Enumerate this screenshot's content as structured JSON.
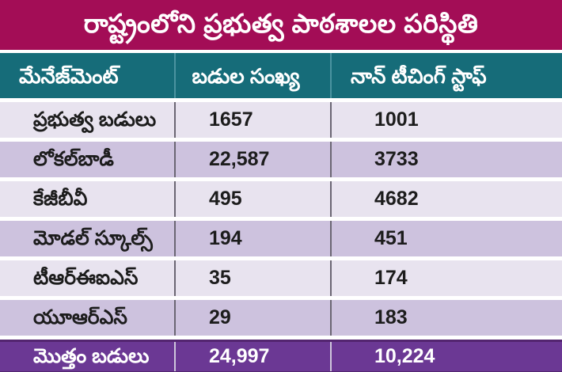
{
  "colors": {
    "title-bg": "#A30D56",
    "header-bg": "#166C79",
    "row-light": "#E8E3EF",
    "row-dark": "#CDC2DE",
    "footer-bg": "#6B3894",
    "footer-edge": "#53256F",
    "text-dark": "#1C1C1C",
    "text-light": "#FFFFFF"
  },
  "chart_data": {
    "type": "table",
    "title": "రాష్ట్రంలోని ప్రభుత్వ పాఠశాలల పరిస్థితి",
    "columns": [
      "మేనేజ్‌మెంట్",
      "బడుల సంఖ్య",
      "నాన్ టీచింగ్ స్టాఫ్"
    ],
    "rows": [
      {
        "label": "ప్రభుత్వ బడులు",
        "schools": "1657",
        "staff": "1001"
      },
      {
        "label": "లోకల్‌బాడీ",
        "schools": "22,587",
        "staff": "3733"
      },
      {
        "label": "కేజీబీవీ",
        "schools": "495",
        "staff": "4682"
      },
      {
        "label": "మోడల్ స్కూల్స్",
        "schools": "194",
        "staff": "451"
      },
      {
        "label": "టీఆర్‌ఈఐఎస్",
        "schools": "35",
        "staff": "174"
      },
      {
        "label": "యూఆర్‌ఎస్",
        "schools": "29",
        "staff": "183"
      }
    ],
    "total_row": {
      "label": "మొత్తం బడులు",
      "schools": "24,997",
      "staff": "10,224"
    }
  }
}
